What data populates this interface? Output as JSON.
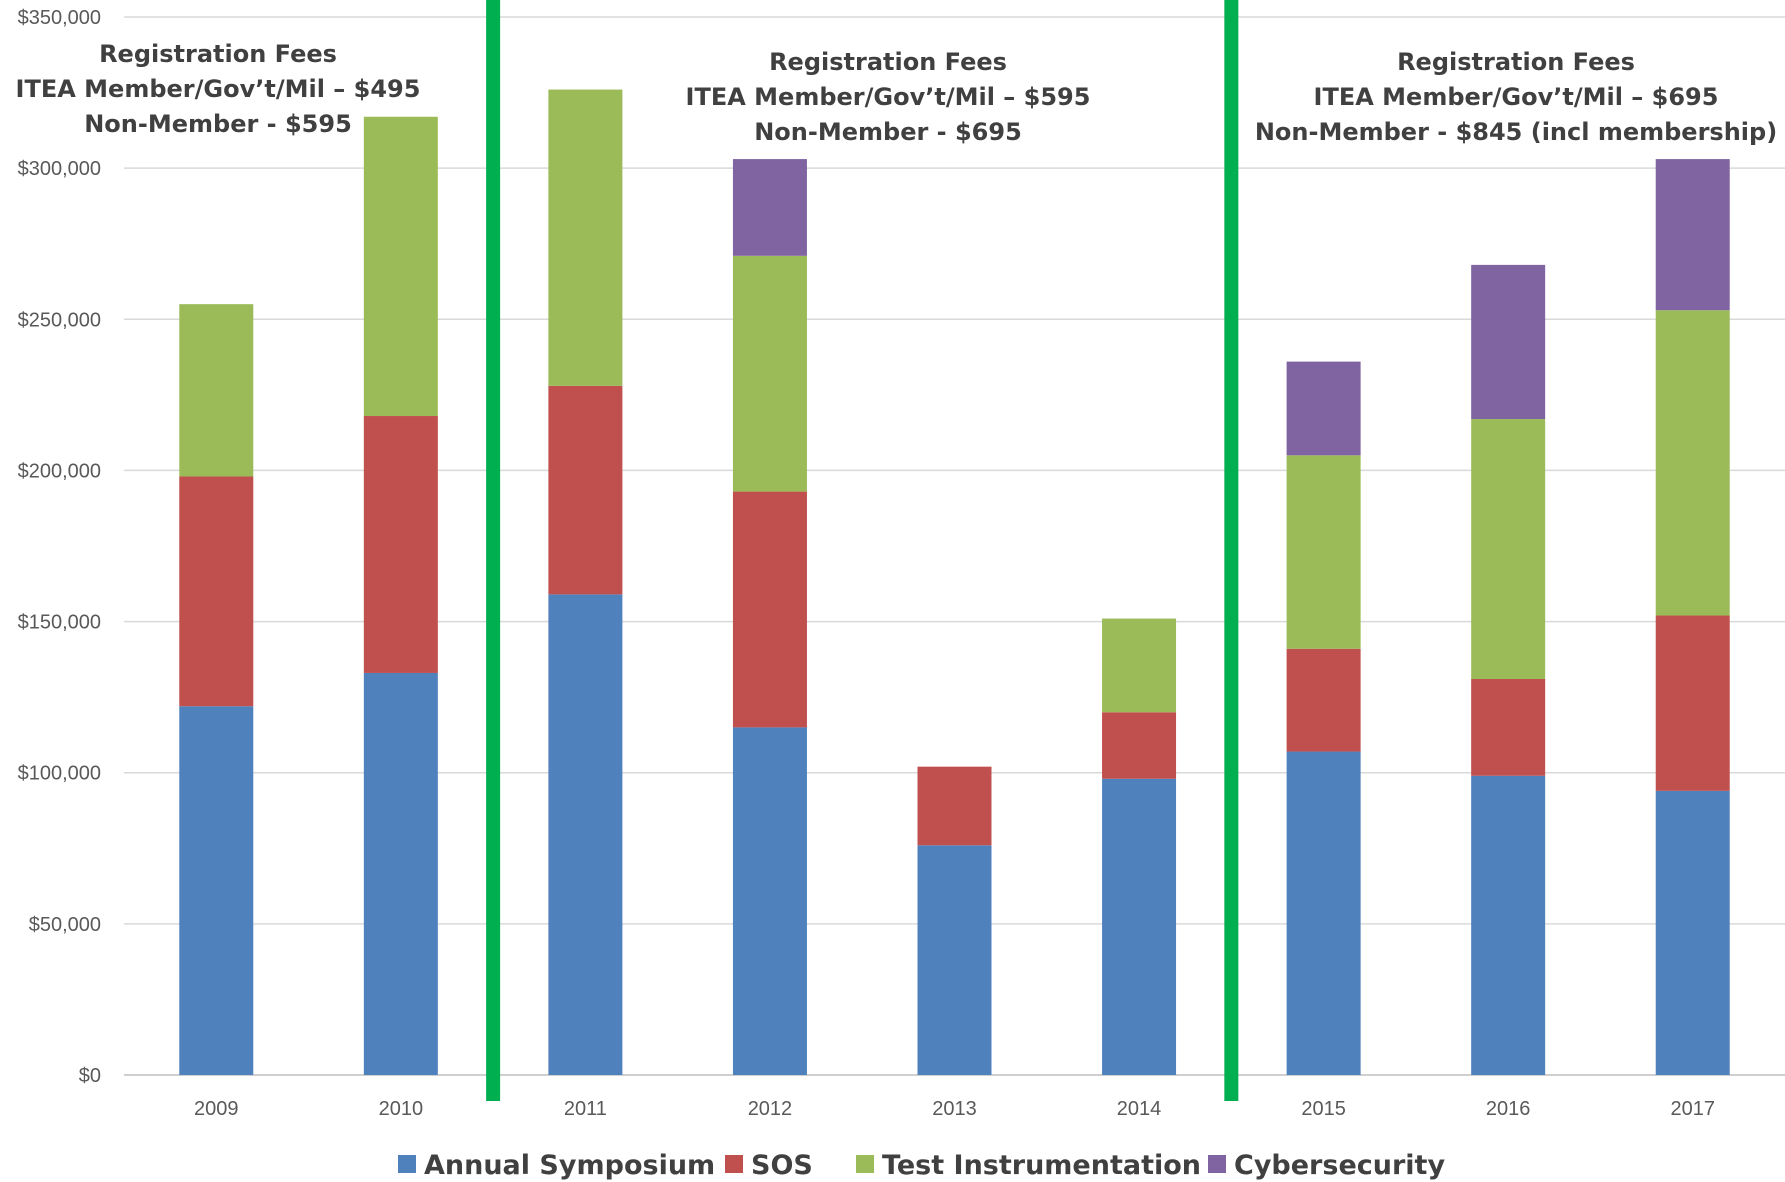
{
  "chart_data": {
    "type": "bar",
    "stacked": true,
    "categories": [
      "2009",
      "2010",
      "2011",
      "2012",
      "2013",
      "2014",
      "2015",
      "2016",
      "2017"
    ],
    "series": [
      {
        "name": "Annual Symposium",
        "color": "#4F81BD",
        "values": [
          122000,
          133000,
          159000,
          115000,
          76000,
          98000,
          107000,
          99000,
          94000
        ]
      },
      {
        "name": "SOS",
        "color": "#C0504D",
        "values": [
          76000,
          85000,
          69000,
          78000,
          26000,
          22000,
          34000,
          32000,
          58000
        ]
      },
      {
        "name": "Test Instrumentation",
        "color": "#9BBB59",
        "values": [
          57000,
          99000,
          98000,
          78000,
          0,
          31000,
          64000,
          86000,
          101000
        ]
      },
      {
        "name": "Cybersecurity",
        "color": "#8064A2",
        "values": [
          0,
          0,
          0,
          32000,
          0,
          0,
          31000,
          51000,
          50000
        ]
      }
    ],
    "ylim": [
      0,
      350000
    ],
    "yticks": [
      "$0",
      "$50,000",
      "$100,000",
      "$150,000",
      "$200,000",
      "$250,000",
      "$300,000",
      "$350,000"
    ],
    "grid": true,
    "legend": "bottom",
    "period_separator_color": "#00B050",
    "period_separators_after": [
      "2010",
      "2014"
    ],
    "annotations": [
      {
        "lines": [
          "Registration Fees",
          "ITEA Member/Gov’t/Mil – $495",
          "Non-Member - $595"
        ]
      },
      {
        "lines": [
          "Registration Fees",
          "ITEA Member/Gov’t/Mil – $595",
          "Non-Member - $695"
        ]
      },
      {
        "lines": [
          "Registration Fees",
          "ITEA Member/Gov’t/Mil – $695",
          "Non-Member - $845 (incl membership)"
        ]
      }
    ]
  }
}
